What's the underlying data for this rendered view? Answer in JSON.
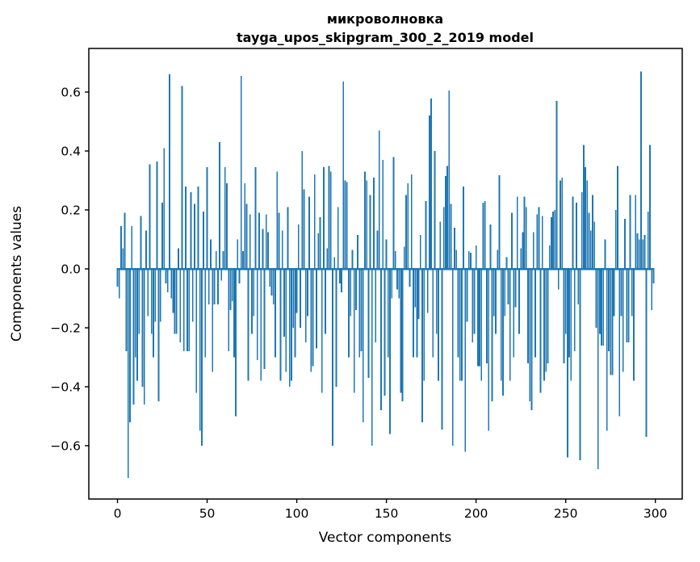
{
  "figure": {
    "background": "#ffffff"
  },
  "chart_data": {
    "type": "bar",
    "title": "микроволновка",
    "subtitle": "tayga_upos_skipgram_300_2_2019 model",
    "xlabel": "Vector components",
    "ylabel": "Components values",
    "bar_color": "#1f77b4",
    "axis_color": "#000000",
    "grid": false,
    "legend_position": "none",
    "xlim": [
      -16,
      315
    ],
    "ylim": [
      -0.781,
      0.748
    ],
    "xticks": {
      "values": [
        0,
        50,
        100,
        150,
        200,
        250,
        300
      ],
      "labels": [
        "0",
        "50",
        "100",
        "150",
        "200",
        "250",
        "300"
      ]
    },
    "yticks": {
      "values": [
        0.6,
        0.4,
        0.2,
        0.0,
        -0.2,
        -0.4,
        -0.6
      ],
      "labels": [
        "0.6",
        "0.4",
        "0.2",
        "0.0",
        "−0.2",
        "−0.4",
        "−0.6"
      ]
    },
    "x_start_index": 0,
    "bar_width": 0.8,
    "values": [
      -0.06,
      -0.1,
      0.145,
      0.07,
      0.19,
      -0.28,
      -0.71,
      -0.52,
      0.145,
      -0.46,
      -0.3,
      -0.38,
      -0.22,
      0.18,
      -0.4,
      -0.46,
      0.13,
      -0.16,
      0.355,
      -0.22,
      -0.3,
      -0.18,
      0.365,
      -0.45,
      -0.18,
      0.225,
      0.41,
      -0.05,
      -0.08,
      0.66,
      -0.1,
      -0.15,
      -0.22,
      -0.22,
      0.07,
      -0.25,
      0.62,
      -0.28,
      0.28,
      -0.28,
      -0.28,
      0.26,
      -0.18,
      0.22,
      -0.42,
      0.28,
      -0.55,
      -0.6,
      0.195,
      -0.3,
      0.345,
      -0.12,
      0.1,
      -0.35,
      -0.12,
      0.06,
      -0.12,
      0.43,
      -0.04,
      0.06,
      0.345,
      0.29,
      -0.28,
      -0.14,
      -0.11,
      -0.3,
      -0.5,
      0.1,
      -0.05,
      0.655,
      0.06,
      0.29,
      0.22,
      -0.38,
      0.185,
      -0.22,
      -0.16,
      0.345,
      -0.31,
      0.19,
      -0.38,
      0.135,
      -0.34,
      0.185,
      0.125,
      -0.06,
      -0.09,
      -0.12,
      -0.3,
      0.33,
      0.19,
      -0.38,
      0.13,
      -0.23,
      -0.35,
      0.21,
      -0.4,
      -0.38,
      -0.2,
      -0.3,
      -0.15,
      0.15,
      -0.2,
      0.4,
      0.27,
      -0.25,
      -0.16,
      0.245,
      -0.35,
      -0.33,
      0.32,
      -0.27,
      0.12,
      0.175,
      -0.42,
      0.345,
      -0.22,
      0.07,
      0.35,
      0.33,
      -0.6,
      0.04,
      -0.4,
      0.21,
      -0.05,
      -0.08,
      0.635,
      0.3,
      0.295,
      -0.3,
      -0.16,
      0.065,
      -0.42,
      -0.14,
      0.115,
      -0.3,
      -0.28,
      -0.52,
      0.33,
      0.3,
      -0.37,
      0.25,
      -0.6,
      0.31,
      -0.25,
      0.13,
      0.47,
      -0.48,
      0.37,
      -0.43,
      0.1,
      -0.3,
      -0.56,
      -0.1,
      0.38,
      0.06,
      -0.07,
      -0.1,
      -0.42,
      -0.45,
      0.075,
      0.25,
      0.29,
      -0.06,
      0.32,
      -0.3,
      -0.13,
      -0.3,
      -0.17,
      0.115,
      -0.52,
      -0.38,
      0.23,
      -0.15,
      0.52,
      0.578,
      -0.3,
      0.4,
      -0.22,
      -0.38,
      0.16,
      -0.545,
      0.21,
      0.315,
      0.35,
      0.605,
      0.22,
      -0.6,
      0.14,
      0.065,
      -0.3,
      -0.38,
      -0.38,
      0.28,
      -0.62,
      -0.18,
      0.06,
      0.055,
      -0.25,
      -0.22,
      0.08,
      -0.33,
      -0.33,
      -0.38,
      0.225,
      0.23,
      -0.32,
      -0.55,
      0.15,
      -0.45,
      -0.16,
      -0.22,
      0.065,
      0.318,
      -0.38,
      -0.43,
      -0.16,
      0.04,
      -0.12,
      -0.38,
      0.19,
      -0.3,
      -0.13,
      0.245,
      -0.22,
      0.07,
      0.125,
      0.245,
      0.21,
      -0.32,
      -0.45,
      -0.48,
      0.125,
      -0.3,
      0.185,
      0.21,
      -0.42,
      0.18,
      -0.38,
      -0.35,
      -0.32,
      0.08,
      0.175,
      0.195,
      0.2,
      0.57,
      -0.07,
      0.3,
      0.31,
      -0.32,
      -0.22,
      -0.64,
      -0.3,
      -0.38,
      0.245,
      -0.28,
      0.225,
      -0.12,
      -0.65,
      0.26,
      0.42,
      0.345,
      0.3,
      0.19,
      0.13,
      0.25,
      0.16,
      -0.2,
      -0.68,
      -0.22,
      -0.26,
      -0.26,
      0.1,
      -0.55,
      -0.28,
      -0.36,
      -0.36,
      -0.16,
      0.2,
      0.35,
      -0.5,
      -0.16,
      -0.35,
      0.17,
      -0.25,
      -0.25,
      0.25,
      -0.16,
      -0.38,
      0.25,
      0.12,
      0.1,
      0.67,
      0.1,
      0.115,
      -0.57,
      0.195,
      0.42,
      -0.14,
      -0.05
    ]
  }
}
